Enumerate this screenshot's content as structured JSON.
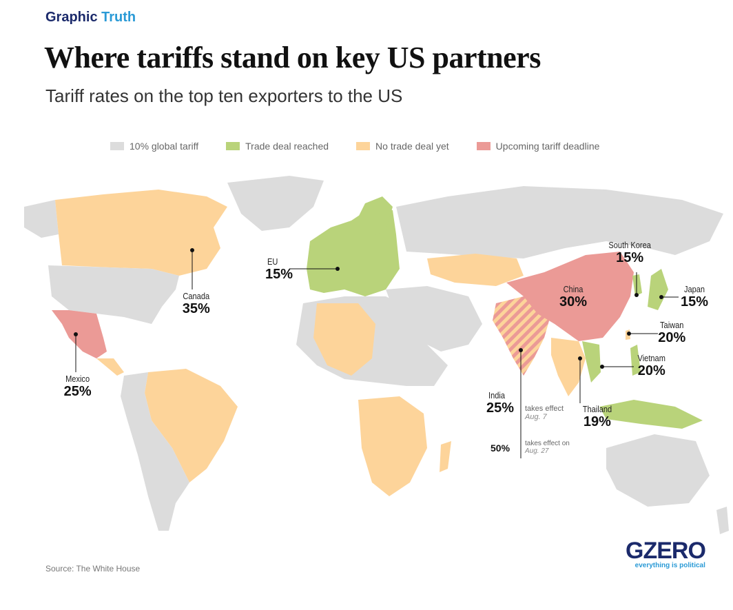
{
  "header": {
    "brand_part1": "Graphic",
    "brand_part2": "Truth",
    "title": "Where tariffs stand on key US partners",
    "subtitle": "Tariff rates on the top ten exporters to the US"
  },
  "legend": [
    {
      "label": "10% global tariff",
      "color": "#dcdcdc"
    },
    {
      "label": "Trade deal reached",
      "color": "#b9d37a"
    },
    {
      "label": "No trade deal yet",
      "color": "#fdd49a"
    },
    {
      "label": "Upcoming tariff deadline",
      "color": "#eb9a96"
    }
  ],
  "countries": {
    "canada": {
      "name": "Canada",
      "value": "35%",
      "status": "No trade deal yet"
    },
    "mexico": {
      "name": "Mexico",
      "value": "25%",
      "status": "Upcoming tariff deadline"
    },
    "eu": {
      "name": "EU",
      "value": "15%",
      "status": "Trade deal reached"
    },
    "china": {
      "name": "China",
      "value": "30%",
      "status": "Upcoming tariff deadline"
    },
    "south_korea": {
      "name": "South Korea",
      "value": "15%",
      "status": "Trade deal reached"
    },
    "japan": {
      "name": "Japan",
      "value": "15%",
      "status": "Trade deal reached"
    },
    "taiwan": {
      "name": "Taiwan",
      "value": "20%",
      "status": "No trade deal yet"
    },
    "vietnam": {
      "name": "Vietnam",
      "value": "20%",
      "status": "Trade deal reached"
    },
    "thailand": {
      "name": "Thailand",
      "value": "19%",
      "status": "No trade deal yet"
    },
    "india": {
      "name": "India",
      "value": "25%",
      "note1": "takes effect",
      "date1": "Aug. 7",
      "value2": "50%",
      "note2": "takes effect on",
      "date2": "Aug. 27",
      "status": "No trade deal yet / Upcoming tariff deadline"
    }
  },
  "footer": {
    "source": "Source: The White House",
    "logo": "GZERO",
    "tagline": "everything is political"
  }
}
